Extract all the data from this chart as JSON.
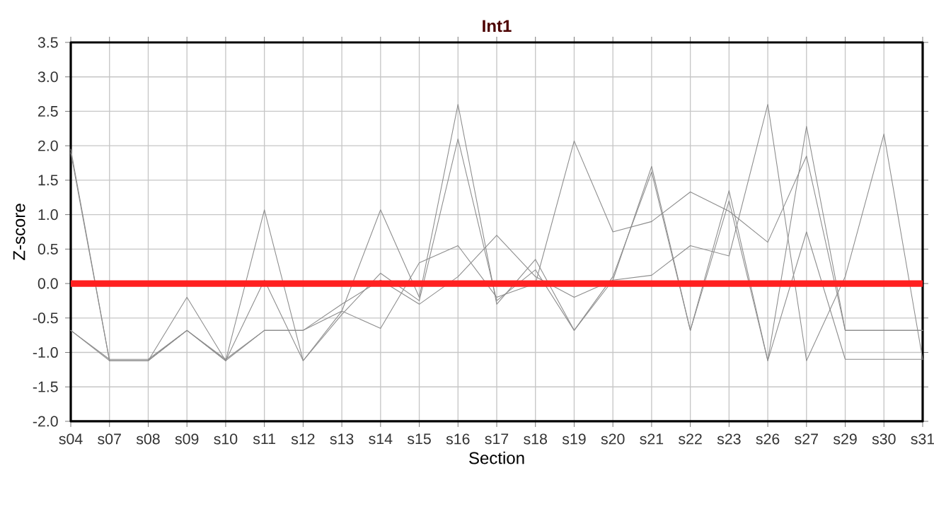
{
  "chart_data": {
    "type": "line",
    "title": "Int1",
    "xlabel": "Section",
    "ylabel": "Z-score",
    "categories": [
      "s04",
      "s07",
      "s08",
      "s09",
      "s10",
      "s11",
      "s12",
      "s13",
      "s14",
      "s15",
      "s16",
      "s17",
      "s18",
      "s19",
      "s20",
      "s21",
      "s22",
      "s23",
      "s26",
      "s27",
      "s29",
      "s30",
      "s31"
    ],
    "series": [
      {
        "color": "#8c8c8c",
        "values": [
          1.95,
          -1.12,
          -1.12,
          -0.2,
          -1.12,
          1.07,
          -1.12,
          -0.4,
          1.07,
          -0.2,
          2.6,
          -0.3,
          0.35,
          -0.68,
          0.05,
          1.7,
          -0.68,
          1.35,
          -1.12,
          2.28,
          -0.68,
          -0.68,
          -0.68
        ]
      },
      {
        "color": "#8c8c8c",
        "values": [
          1.9,
          -1.12,
          -1.12,
          -0.68,
          -1.12,
          0.05,
          -1.12,
          -0.45,
          0.15,
          -0.25,
          2.1,
          -0.25,
          0.2,
          -0.68,
          0.1,
          1.62,
          -0.68,
          1.2,
          -1.12,
          0.75,
          -1.1,
          -1.1,
          -1.1
        ]
      },
      {
        "color": "#8c8c8c",
        "values": [
          -0.68,
          -1.12,
          -1.12,
          -0.68,
          -1.12,
          -0.68,
          -0.68,
          -0.4,
          -0.65,
          0.3,
          0.55,
          -0.2,
          0.0,
          2.07,
          0.75,
          0.9,
          1.33,
          1.05,
          0.6,
          1.85,
          -0.68,
          -0.68,
          -0.68
        ]
      },
      {
        "color": "#8c8c8c",
        "values": [
          -0.68,
          -1.1,
          -1.1,
          -0.68,
          -1.1,
          -0.68,
          -0.68,
          -0.3,
          0.05,
          -0.3,
          0.1,
          0.7,
          0.1,
          -0.2,
          0.05,
          0.12,
          0.55,
          0.4,
          2.6,
          -1.12,
          0.1,
          2.17,
          -1.1
        ]
      }
    ],
    "ylim": [
      -2.0,
      3.5
    ],
    "yticks": [
      {
        "value": -2.0,
        "label": "-2.0"
      },
      {
        "value": -1.5,
        "label": "-1.5"
      },
      {
        "value": -1.0,
        "label": "-1.0"
      },
      {
        "value": -0.5,
        "label": "-0.5"
      },
      {
        "value": 0.0,
        "label": "0.0"
      },
      {
        "value": 0.5,
        "label": "0.5"
      },
      {
        "value": 1.0,
        "label": "1.0"
      },
      {
        "value": 1.5,
        "label": "1.5"
      },
      {
        "value": 2.0,
        "label": "2.0"
      },
      {
        "value": 2.5,
        "label": "2.5"
      },
      {
        "value": 3.0,
        "label": "3.0"
      },
      {
        "value": 3.5,
        "label": "3.5"
      }
    ],
    "grid": true,
    "marker": "none",
    "line_style": "solid",
    "ref_lines": [
      {
        "axis": "y",
        "value": 0.0,
        "color": "#ff2020"
      }
    ]
  }
}
